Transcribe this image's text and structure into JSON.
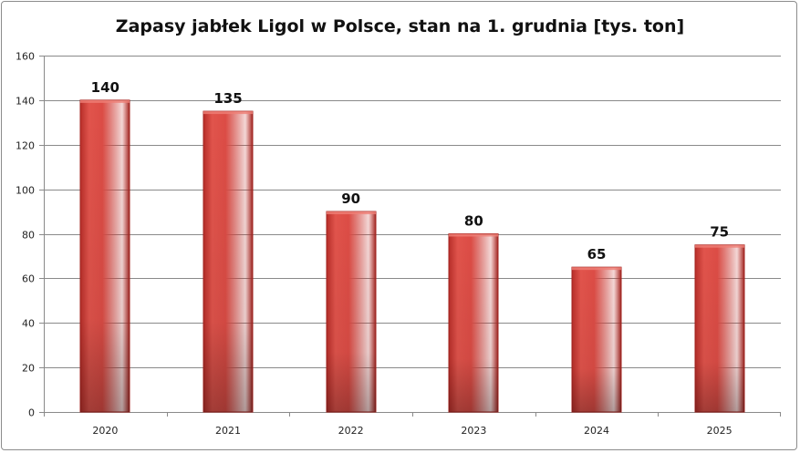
{
  "chart_data": {
    "type": "bar",
    "title": "Zapasy jabłek Ligol w Polsce, stan na 1. grudnia [tys. ton]",
    "categories": [
      "2020",
      "2021",
      "2022",
      "2023",
      "2024",
      "2025"
    ],
    "values": [
      140,
      135,
      90,
      80,
      65,
      75
    ],
    "data_labels": [
      "140",
      "135",
      "90",
      "80",
      "65",
      "75"
    ],
    "xlabel": "",
    "ylabel": "",
    "ylim": [
      0,
      160
    ],
    "yticks": [
      "0",
      "20",
      "40",
      "60",
      "80",
      "100",
      "120",
      "140",
      "160"
    ],
    "grid": true,
    "legend": "none",
    "bar_color": "#d84a43",
    "bar_edge_color": "#a3231f"
  }
}
